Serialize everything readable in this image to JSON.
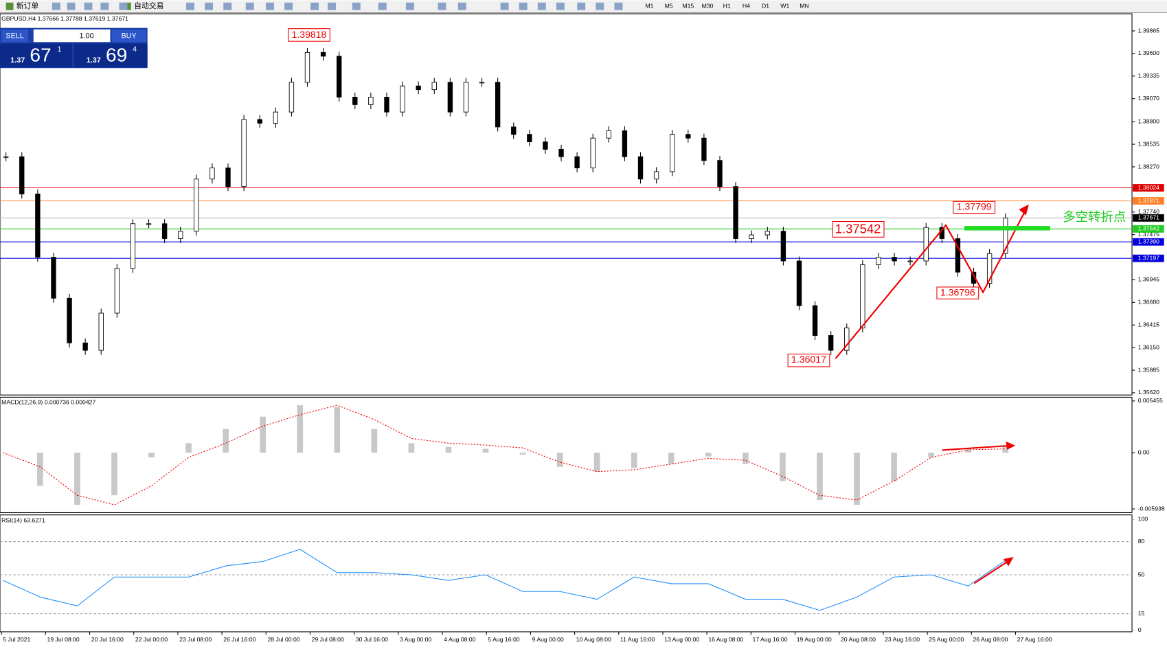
{
  "toolbar": {
    "buttons": [
      "新订单",
      "自动交易"
    ],
    "timeframes": [
      "M1",
      "M5",
      "M15",
      "M30",
      "H1",
      "H4",
      "D1",
      "W1",
      "MN"
    ]
  },
  "main_chart": {
    "header": "GBPUSD,H4 1.37666 1.37788 1.37619 1.37671",
    "trade_panel": {
      "sell": "SELL",
      "lots": "1.00",
      "buy": "BUY",
      "bid": [
        "1.37",
        "67",
        "1"
      ],
      "ask": [
        "1.37",
        "69",
        "4"
      ]
    },
    "price_ticks": [
      1.39865,
      {
        "value": 1.396,
        "label": "1.39600"
      },
      1.39335,
      {
        "value": 1.3907,
        "label": "1.39070"
      },
      {
        "value": 1.388,
        "label": "1.38800"
      },
      1.38535,
      {
        "value": 1.3827,
        "label": "1.38270"
      },
      {
        "value": 1.3774,
        "label": "1.37740"
      },
      1.37475,
      1.36945,
      {
        "value": 1.3668,
        "label": "1.36680"
      },
      1.36415,
      {
        "value": 1.3615,
        "label": "1.36150"
      },
      1.35885,
      {
        "value": 1.3562,
        "label": "1.35620"
      }
    ],
    "levels": [
      {
        "value": 1.38024,
        "color": "#e00000"
      },
      {
        "value": 1.37871,
        "color": "#ff7f27"
      },
      {
        "value": 1.37542,
        "color": "#22cc22"
      },
      {
        "value": {
          "value": 1.3739,
          "label": "1.37390"
        },
        "color": "#0000dd"
      },
      {
        "value": 1.37197,
        "color": "#0000dd"
      }
    ],
    "current_price": 1.37671,
    "closes": [
      1.38389,
      1.37952,
      1.3721,
      1.36729,
      1.36205,
      1.36118,
      1.36554,
      1.37079,
      1.37603,
      1.37603,
      1.37428,
      1.37515,
      1.38127,
      1.38258,
      1.38039,
      1.38826,
      1.38782,
      1.38913,
      1.39262,
      1.39612,
      1.39568,
      1.39088,
      1.39,
      1.39088,
      1.38913,
      1.39219,
      1.39175,
      1.39262,
      1.38913,
      1.39262,
      1.39262,
      1.38738,
      1.38651,
      1.38563,
      1.38476,
      1.38389,
      1.38258,
      1.38607,
      1.38694,
      1.38389,
      1.38127,
      1.38214,
      1.38651,
      1.38607,
      1.38345,
      1.38039,
      1.37428,
      1.37472,
      1.37515,
      1.37166,
      1.36642,
      1.36292,
      1.36118,
      1.3638,
      1.37122,
      1.3721,
      1.37166,
      1.37166,
      1.37559,
      1.37428,
      1.37035,
      1.36904,
      1.37253,
      1.37671
    ],
    "annotations": [
      "1.39818",
      "1.37542",
      "1.37799",
      "1.36796",
      "1.36017",
      "多空转折点"
    ]
  },
  "macd": {
    "header": "MACD(12,26,9) 0.000736 0.000427",
    "ticks": [
      0.005455,
      {
        "value": 0,
        "label": "0.00"
      },
      -0.005938
    ],
    "histogram": [
      0,
      -0.0035,
      -0.0055,
      -0.0045,
      -0.0005,
      0.001,
      0.0025,
      0.0038,
      0.005,
      0.0048,
      0.0025,
      0.001,
      0.0006,
      0.0004,
      -0.0002,
      -0.0015,
      -0.002,
      -0.0016,
      -0.0012,
      -0.0004,
      -0.0012,
      -0.003,
      -0.005,
      -0.0055,
      -0.003,
      -0.0005,
      0.0004,
      0.0007
    ],
    "signal": [
      0,
      -0.0015,
      -0.0045,
      -0.0055,
      -0.0035,
      -0.0005,
      0.001,
      0.0028,
      0.004,
      0.005,
      0.0035,
      0.0015,
      0.001,
      0.0008,
      0.0005,
      -0.001,
      -0.002,
      -0.0018,
      -0.0012,
      -0.0006,
      -0.0008,
      -0.0025,
      -0.0045,
      -0.005,
      -0.003,
      -0.0005,
      0.0003,
      0.0004
    ]
  },
  "rsi": {
    "header": "RSI(14) 63.6271",
    "ticks": [
      100,
      80,
      50,
      15,
      0
    ],
    "values": [
      45,
      30,
      22,
      48,
      48,
      48,
      58,
      62,
      73,
      52,
      52,
      50,
      45,
      50,
      35,
      35,
      28,
      48,
      42,
      42,
      28,
      28,
      18,
      30,
      48,
      50,
      40,
      63
    ]
  },
  "time_axis": [
    "5 Jul 2021",
    "19 Jul 08:00",
    "20 Jul 16:00",
    "22 Jul 00:00",
    "23 Jul 08:00",
    "26 Jul 16:00",
    "28 Jul 00:00",
    "29 Jul 08:00",
    "30 Jul 16:00",
    "3 Aug 00:00",
    "4 Aug 08:00",
    "5 Aug 16:00",
    "9 Aug 00:00",
    "10 Aug 08:00",
    "11 Aug 16:00",
    "13 Aug 00:00",
    "16 Aug 08:00",
    "17 Aug 16:00",
    "19 Aug 00:00",
    "20 Aug 08:00",
    "23 Aug 16:00",
    "25 Aug 00:00",
    "26 Aug 08:00",
    "27 Aug 16:00"
  ]
}
